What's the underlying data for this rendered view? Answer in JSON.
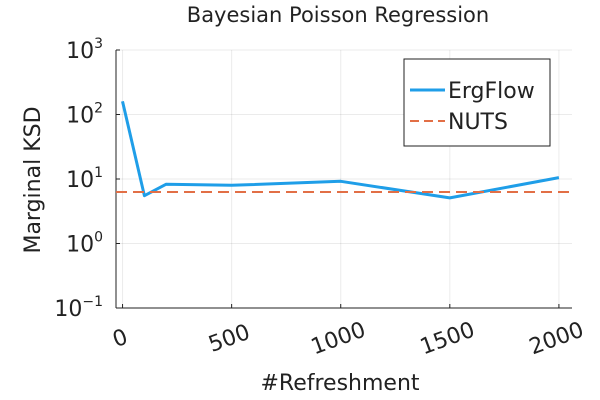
{
  "chart_data": {
    "type": "line",
    "title": "Bayesian Poisson Regression",
    "xlabel": "#Refreshment",
    "ylabel": "Marginal KSD",
    "x_ticks": [
      0,
      500,
      1000,
      1500,
      2000
    ],
    "x_tick_labels": [
      "0",
      "500",
      "1000",
      "1500",
      "2000"
    ],
    "xlim": [
      -30,
      2060
    ],
    "y_scale": "log",
    "ylim": [
      0.1,
      1000
    ],
    "y_tick_values": [
      0.1,
      1,
      10,
      100,
      1000
    ],
    "y_tick_labels": [
      {
        "base": "10",
        "exp": "−1"
      },
      {
        "base": "10",
        "exp": "0"
      },
      {
        "base": "10",
        "exp": "1"
      },
      {
        "base": "10",
        "exp": "2"
      },
      {
        "base": "10",
        "exp": "3"
      }
    ],
    "grid": true,
    "legend_position": "top-right",
    "series": [
      {
        "name": "ErgFlow",
        "style": "solid",
        "color": "#1f9ee8",
        "x": [
          0,
          100,
          200,
          500,
          1000,
          1500,
          2000
        ],
        "y": [
          160,
          5.5,
          8.3,
          8.0,
          9.2,
          5.1,
          10.5
        ]
      },
      {
        "name": "NUTS",
        "style": "dashed",
        "color": "#e26f46",
        "constant_y": 6.3
      }
    ]
  }
}
